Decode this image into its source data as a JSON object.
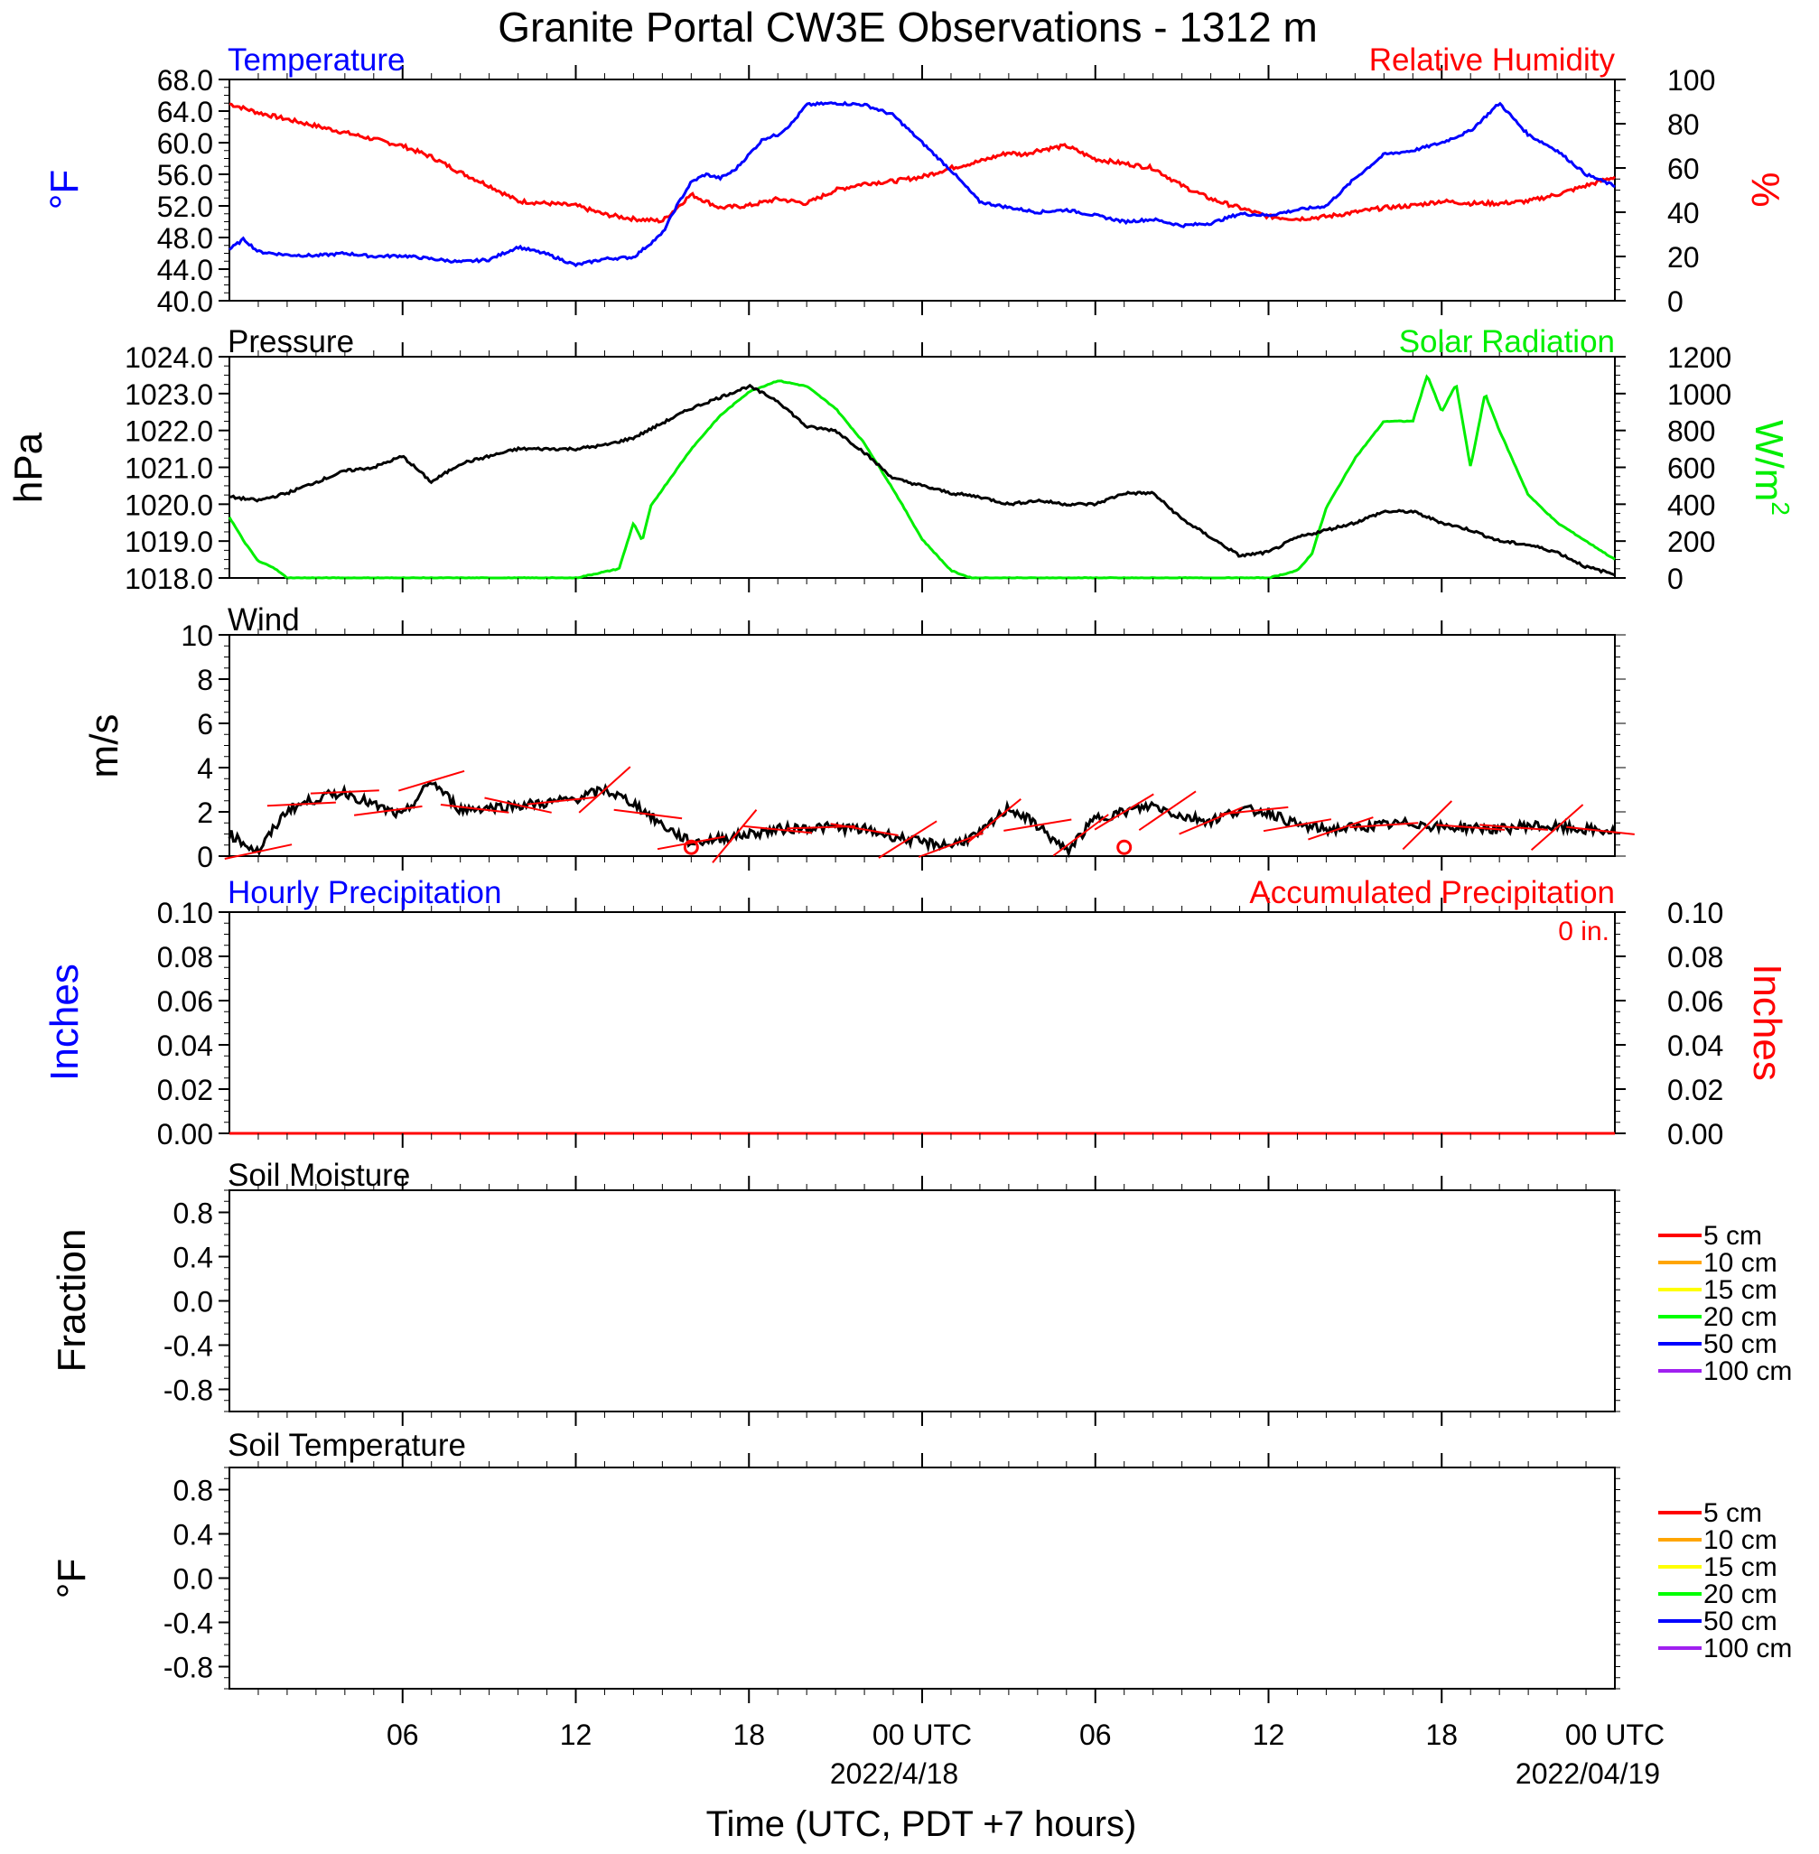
{
  "figure": {
    "title": "Granite Portal CW3E Observations - 1312 m",
    "xlabel": "Time (UTC, PDT +7 hours)",
    "x_ticks": [
      "06",
      "12",
      "18",
      "00 UTC",
      "06",
      "12",
      "18",
      "00 UTC"
    ],
    "x_dates": [
      "2022/4/18",
      "2022/04/19"
    ]
  },
  "colors": {
    "temperature": "#0000ff",
    "humidity": "#ff0000",
    "pressure": "#000000",
    "solar": "#00ee00",
    "wind": "#000000",
    "wind_barb": "#ff0000",
    "hourly_precip": "#0000ff",
    "accum_precip": "#ff0000",
    "soil_depths": [
      "#ff0000",
      "#ffa500",
      "#ffff00",
      "#00ff00",
      "#0000ff",
      "#a020f0"
    ]
  },
  "panels": {
    "temp_rh": {
      "left_title": "Temperature",
      "right_title": "Relative Humidity",
      "left_unit": "°F",
      "right_unit": "%",
      "left_ticks": [
        "68.0",
        "64.0",
        "60.0",
        "56.0",
        "52.0",
        "48.0",
        "44.0",
        "40.0"
      ],
      "right_ticks": [
        "100",
        "80",
        "60",
        "40",
        "20",
        "0"
      ]
    },
    "pres_solar": {
      "left_title": "Pressure",
      "right_title": "Solar Radiation",
      "left_unit": "hPa",
      "right_unit": "W/m",
      "right_unit_sup": "2",
      "left_ticks": [
        "1024.0",
        "1023.0",
        "1022.0",
        "1021.0",
        "1020.0",
        "1019.0",
        "1018.0"
      ],
      "right_ticks": [
        "1200",
        "1000",
        "800",
        "600",
        "400",
        "200",
        "0"
      ]
    },
    "wind": {
      "left_title": "Wind",
      "left_unit": "m/s",
      "left_ticks": [
        "10",
        "8",
        "6",
        "4",
        "2",
        "0"
      ]
    },
    "precip": {
      "left_title": "Hourly Precipitation",
      "right_title": "Accumulated Precipitation",
      "accum_total": "0 in.",
      "left_unit": "Inches",
      "right_unit": "Inches",
      "left_ticks": [
        "0.10",
        "0.08",
        "0.06",
        "0.04",
        "0.02",
        "0.00"
      ],
      "right_ticks": [
        "0.10",
        "0.08",
        "0.06",
        "0.04",
        "0.02",
        "0.00"
      ]
    },
    "soil_moist": {
      "left_title": "Soil Moisture",
      "left_unit": "Fraction",
      "left_ticks": [
        "0.8",
        "0.4",
        "0.0",
        "-0.4",
        "-0.8"
      ],
      "legend": [
        "5 cm",
        "10 cm",
        "15 cm",
        "20 cm",
        "50 cm",
        "100 cm"
      ]
    },
    "soil_temp": {
      "left_title": "Soil Temperature",
      "left_unit": "°F",
      "left_ticks": [
        "0.8",
        "0.4",
        "0.0",
        "-0.4",
        "-0.8"
      ],
      "legend": [
        "5 cm",
        "10 cm",
        "15 cm",
        "20 cm",
        "50 cm",
        "100 cm"
      ]
    }
  },
  "chart_data": [
    {
      "type": "line",
      "name": "temperature_humidity",
      "x_unit": "hours since 2022-04-17 00 UTC",
      "xlim": [
        0,
        48
      ],
      "series": [
        {
          "name": "Temperature",
          "axis": "left",
          "ylim": [
            40,
            68
          ],
          "x": [
            0,
            0.5,
            1,
            2,
            3,
            4,
            5,
            6,
            7,
            8,
            9,
            10,
            11,
            12,
            13,
            14,
            15,
            15.5,
            16,
            16.5,
            17,
            17.5,
            18,
            18.5,
            19,
            19.5,
            20,
            21,
            22,
            23,
            24,
            25,
            26,
            27,
            28,
            29,
            30,
            31,
            32,
            33,
            34,
            35,
            36,
            37,
            38,
            39,
            40,
            41,
            42,
            43,
            44,
            45,
            46,
            47,
            48
          ],
          "values": [
            46.5,
            47.8,
            46.2,
            45.8,
            45.7,
            46.0,
            45.6,
            45.7,
            45.3,
            44.9,
            45.2,
            46.8,
            45.9,
            44.5,
            45.3,
            45.5,
            48.5,
            52.0,
            55.0,
            56.0,
            55.5,
            56.5,
            58.5,
            60.5,
            61.0,
            62.5,
            64.8,
            65.0,
            64.8,
            63.5,
            60.0,
            56.5,
            52.5,
            51.8,
            51.2,
            51.5,
            50.8,
            50.0,
            50.3,
            49.5,
            49.8,
            51.0,
            50.8,
            51.5,
            52.0,
            55.5,
            58.5,
            59.0,
            60.0,
            61.5,
            65.0,
            61.0,
            59.0,
            56.0,
            54.5
          ]
        },
        {
          "name": "Relative Humidity",
          "axis": "right",
          "ylim": [
            0,
            100
          ],
          "x": [
            0,
            1,
            2,
            3,
            4,
            5,
            6,
            7,
            8,
            9,
            10,
            11,
            12,
            13,
            14,
            15,
            16,
            17,
            18,
            19,
            20,
            21,
            22,
            23,
            24,
            25,
            26,
            27,
            27.5,
            28,
            29,
            30,
            31,
            32,
            33,
            34,
            35,
            36,
            37,
            38,
            39,
            40,
            41,
            42,
            43,
            44,
            45,
            46,
            47,
            48
          ],
          "values": [
            89,
            85,
            82,
            79,
            76,
            73,
            70,
            65,
            58,
            52,
            45,
            44,
            43,
            39,
            37,
            36,
            48,
            42,
            43,
            46,
            44,
            50,
            53,
            54,
            56,
            60,
            63,
            67,
            66,
            68,
            70,
            64,
            62,
            60,
            52,
            46,
            42,
            38,
            37,
            38,
            40,
            42,
            43,
            45,
            44,
            44,
            45,
            48,
            52,
            56
          ]
        }
      ]
    },
    {
      "type": "line",
      "name": "pressure_solar",
      "x_unit": "hours since 2022-04-17 00 UTC",
      "xlim": [
        0,
        48
      ],
      "series": [
        {
          "name": "Pressure",
          "axis": "left",
          "ylim": [
            1018,
            1024
          ],
          "x": [
            0,
            1,
            2,
            3,
            4,
            5,
            6,
            7,
            8,
            9,
            10,
            11,
            12,
            13,
            14,
            15,
            16,
            17,
            18,
            19,
            20,
            21,
            22,
            23,
            24,
            25,
            26,
            27,
            28,
            29,
            30,
            31,
            32,
            33,
            34,
            35,
            36,
            37,
            38,
            39,
            40,
            41,
            42,
            43,
            44,
            45,
            46,
            47,
            48
          ],
          "values": [
            1020.2,
            1020.1,
            1020.3,
            1020.6,
            1020.9,
            1021.0,
            1021.3,
            1020.6,
            1021.1,
            1021.3,
            1021.5,
            1021.5,
            1021.5,
            1021.6,
            1021.8,
            1022.2,
            1022.6,
            1022.9,
            1023.2,
            1022.8,
            1022.1,
            1022.0,
            1021.4,
            1020.7,
            1020.5,
            1020.3,
            1020.2,
            1020.0,
            1020.1,
            1020.0,
            1020.0,
            1020.3,
            1020.3,
            1019.6,
            1019.1,
            1018.6,
            1018.7,
            1019.1,
            1019.3,
            1019.5,
            1019.8,
            1019.8,
            1019.5,
            1019.3,
            1019.0,
            1018.9,
            1018.7,
            1018.3,
            1018.1
          ]
        },
        {
          "name": "Solar Radiation",
          "axis": "right",
          "ylim": [
            0,
            1200
          ],
          "x": [
            0,
            0.5,
            1,
            1.5,
            2,
            12,
            13.5,
            14,
            14.3,
            14.6,
            15,
            16,
            17,
            18,
            19,
            20,
            21,
            22,
            23,
            24,
            25,
            25.7,
            26,
            36,
            37,
            37.5,
            38,
            39,
            40,
            41,
            41.5,
            42,
            42.5,
            43,
            43.5,
            44,
            45,
            46,
            47,
            47.5,
            48
          ],
          "values": [
            330,
            200,
            90,
            60,
            0,
            0,
            50,
            300,
            200,
            390,
            480,
            700,
            880,
            1010,
            1070,
            1040,
            920,
            730,
            480,
            210,
            40,
            0,
            0,
            0,
            40,
            130,
            380,
            650,
            850,
            850,
            1100,
            900,
            1050,
            600,
            1000,
            800,
            450,
            300,
            200,
            150,
            100
          ]
        }
      ]
    },
    {
      "type": "line",
      "name": "wind_speed",
      "x_unit": "hours since 2022-04-17 00 UTC",
      "xlim": [
        0,
        48
      ],
      "series": [
        {
          "name": "Wind",
          "ylim": [
            0,
            10
          ],
          "x": [
            0,
            1,
            2,
            3,
            4,
            5,
            6,
            7,
            8,
            9,
            10,
            11,
            12,
            13,
            14,
            15,
            16,
            17,
            18,
            19,
            20,
            21,
            22,
            23,
            24,
            25,
            26,
            27,
            28,
            29,
            30,
            31,
            32,
            33,
            34,
            35,
            36,
            37,
            38,
            39,
            40,
            41,
            42,
            43,
            44,
            45,
            46,
            47,
            48
          ],
          "values": [
            1.0,
            0.2,
            2.1,
            2.6,
            2.9,
            2.3,
            1.8,
            3.4,
            2.1,
            2.2,
            2.3,
            2.4,
            2.6,
            3.0,
            2.4,
            1.4,
            0.6,
            0.8,
            1.0,
            1.2,
            1.3,
            1.3,
            1.2,
            0.9,
            0.6,
            0.5,
            1.0,
            2.2,
            1.4,
            0.2,
            1.7,
            2.0,
            2.3,
            1.8,
            1.6,
            2.1,
            2.0,
            1.4,
            1.2,
            1.3,
            1.4,
            1.5,
            1.3,
            1.3,
            1.2,
            1.4,
            1.3,
            1.2,
            1.1
          ]
        }
      ]
    },
    {
      "type": "line",
      "name": "precipitation",
      "x_unit": "hours since 2022-04-17 00 UTC",
      "xlim": [
        0,
        48
      ],
      "series": [
        {
          "name": "Hourly Precipitation",
          "axis": "left",
          "ylim": [
            0,
            0.1
          ],
          "x": [
            0,
            48
          ],
          "values": [
            0,
            0
          ]
        },
        {
          "name": "Accumulated Precipitation",
          "axis": "right",
          "ylim": [
            0,
            0.1
          ],
          "x": [
            0,
            48
          ],
          "values": [
            0,
            0
          ]
        }
      ]
    },
    {
      "type": "line",
      "name": "soil_moisture",
      "ylim": [
        -1,
        1
      ],
      "series": []
    },
    {
      "type": "line",
      "name": "soil_temperature",
      "ylim": [
        -1,
        1
      ],
      "series": []
    }
  ]
}
